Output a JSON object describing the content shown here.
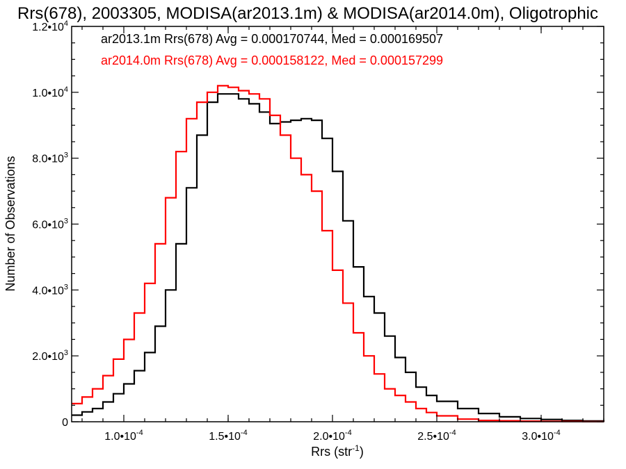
{
  "chart_data": {
    "type": "line",
    "title": "Rrs(678), 2003305, MODISA(ar2013.1m) & MODISA(ar2014.0m), Oligotrophic",
    "xlabel": "Rrs (str",
    "xlabel_sup": "-1",
    "xlabel_end": ")",
    "ylabel": "Number of Observations",
    "xlim": [
      7.5e-05,
      0.00033
    ],
    "ylim": [
      0,
      12000
    ],
    "x_ticks": [
      {
        "value": 0.0001,
        "mantissa": "1.0",
        "exp": "-4"
      },
      {
        "value": 0.00015,
        "mantissa": "1.5",
        "exp": "-4"
      },
      {
        "value": 0.0002,
        "mantissa": "2.0",
        "exp": "-4"
      },
      {
        "value": 0.00025,
        "mantissa": "2.5",
        "exp": "-4"
      },
      {
        "value": 0.0003,
        "mantissa": "3.0",
        "exp": "-4"
      }
    ],
    "y_ticks": [
      {
        "value": 0,
        "mantissa": "0",
        "exp": ""
      },
      {
        "value": 2000,
        "mantissa": "2.0",
        "exp": "3"
      },
      {
        "value": 4000,
        "mantissa": "4.0",
        "exp": "3"
      },
      {
        "value": 6000,
        "mantissa": "6.0",
        "exp": "3"
      },
      {
        "value": 8000,
        "mantissa": "8.0",
        "exp": "3"
      },
      {
        "value": 10000,
        "mantissa": "1.0",
        "exp": "4"
      },
      {
        "value": 12000,
        "mantissa": "1.2",
        "exp": "4"
      }
    ],
    "tick_mult": "•10",
    "grid": false,
    "legend_position": "top-left",
    "series": [
      {
        "name": "ar2013.1m",
        "label": "ar2013.1m Rrs(678) Avg = 0.000170744, Med = 0.000169507",
        "color": "#000000",
        "x": [
          7.5e-05,
          8e-05,
          8.5e-05,
          9e-05,
          9.5e-05,
          0.0001,
          0.000105,
          0.00011,
          0.000115,
          0.00012,
          0.000125,
          0.00013,
          0.000135,
          0.00014,
          0.000145,
          0.00015,
          0.000155,
          0.00016,
          0.000165,
          0.00017,
          0.000175,
          0.00018,
          0.000185,
          0.00019,
          0.000195,
          0.0002,
          0.000205,
          0.00021,
          0.000215,
          0.00022,
          0.000225,
          0.00023,
          0.000235,
          0.00024,
          0.000245,
          0.00025,
          0.00026,
          0.00027,
          0.00028,
          0.00029,
          0.0003,
          0.00031,
          0.00032,
          0.00033
        ],
        "y": [
          200,
          300,
          400,
          600,
          850,
          1150,
          1550,
          2100,
          2900,
          4000,
          5400,
          7100,
          8700,
          9700,
          9950,
          9950,
          9800,
          9650,
          9400,
          9050,
          9100,
          9150,
          9200,
          9150,
          8600,
          7600,
          6100,
          4700,
          3800,
          3300,
          2600,
          1950,
          1500,
          1050,
          800,
          620,
          400,
          250,
          150,
          100,
          70,
          40,
          25,
          10
        ]
      },
      {
        "name": "ar2014.0m",
        "label": "ar2014.0m Rrs(678) Avg = 0.000158122, Med = 0.000157299",
        "color": "#ff0000",
        "x": [
          7.5e-05,
          8e-05,
          8.5e-05,
          9e-05,
          9.5e-05,
          0.0001,
          0.000105,
          0.00011,
          0.000115,
          0.00012,
          0.000125,
          0.00013,
          0.000135,
          0.00014,
          0.000145,
          0.00015,
          0.000155,
          0.00016,
          0.000165,
          0.00017,
          0.000175,
          0.00018,
          0.000185,
          0.00019,
          0.000195,
          0.0002,
          0.000205,
          0.00021,
          0.000215,
          0.00022,
          0.000225,
          0.00023,
          0.000235,
          0.00024,
          0.000245,
          0.00025,
          0.00026,
          0.00027,
          0.00028,
          0.00029,
          0.0003,
          0.00031,
          0.00032,
          0.00033
        ],
        "y": [
          550,
          750,
          1000,
          1400,
          1900,
          2500,
          3300,
          4200,
          5400,
          6800,
          8200,
          9200,
          9700,
          10000,
          10200,
          10150,
          10050,
          9950,
          9800,
          9300,
          8700,
          8000,
          7500,
          7000,
          5800,
          4600,
          3600,
          2700,
          2000,
          1450,
          1000,
          800,
          600,
          400,
          280,
          180,
          80,
          40,
          30,
          20,
          15,
          10,
          5,
          0
        ]
      }
    ]
  }
}
